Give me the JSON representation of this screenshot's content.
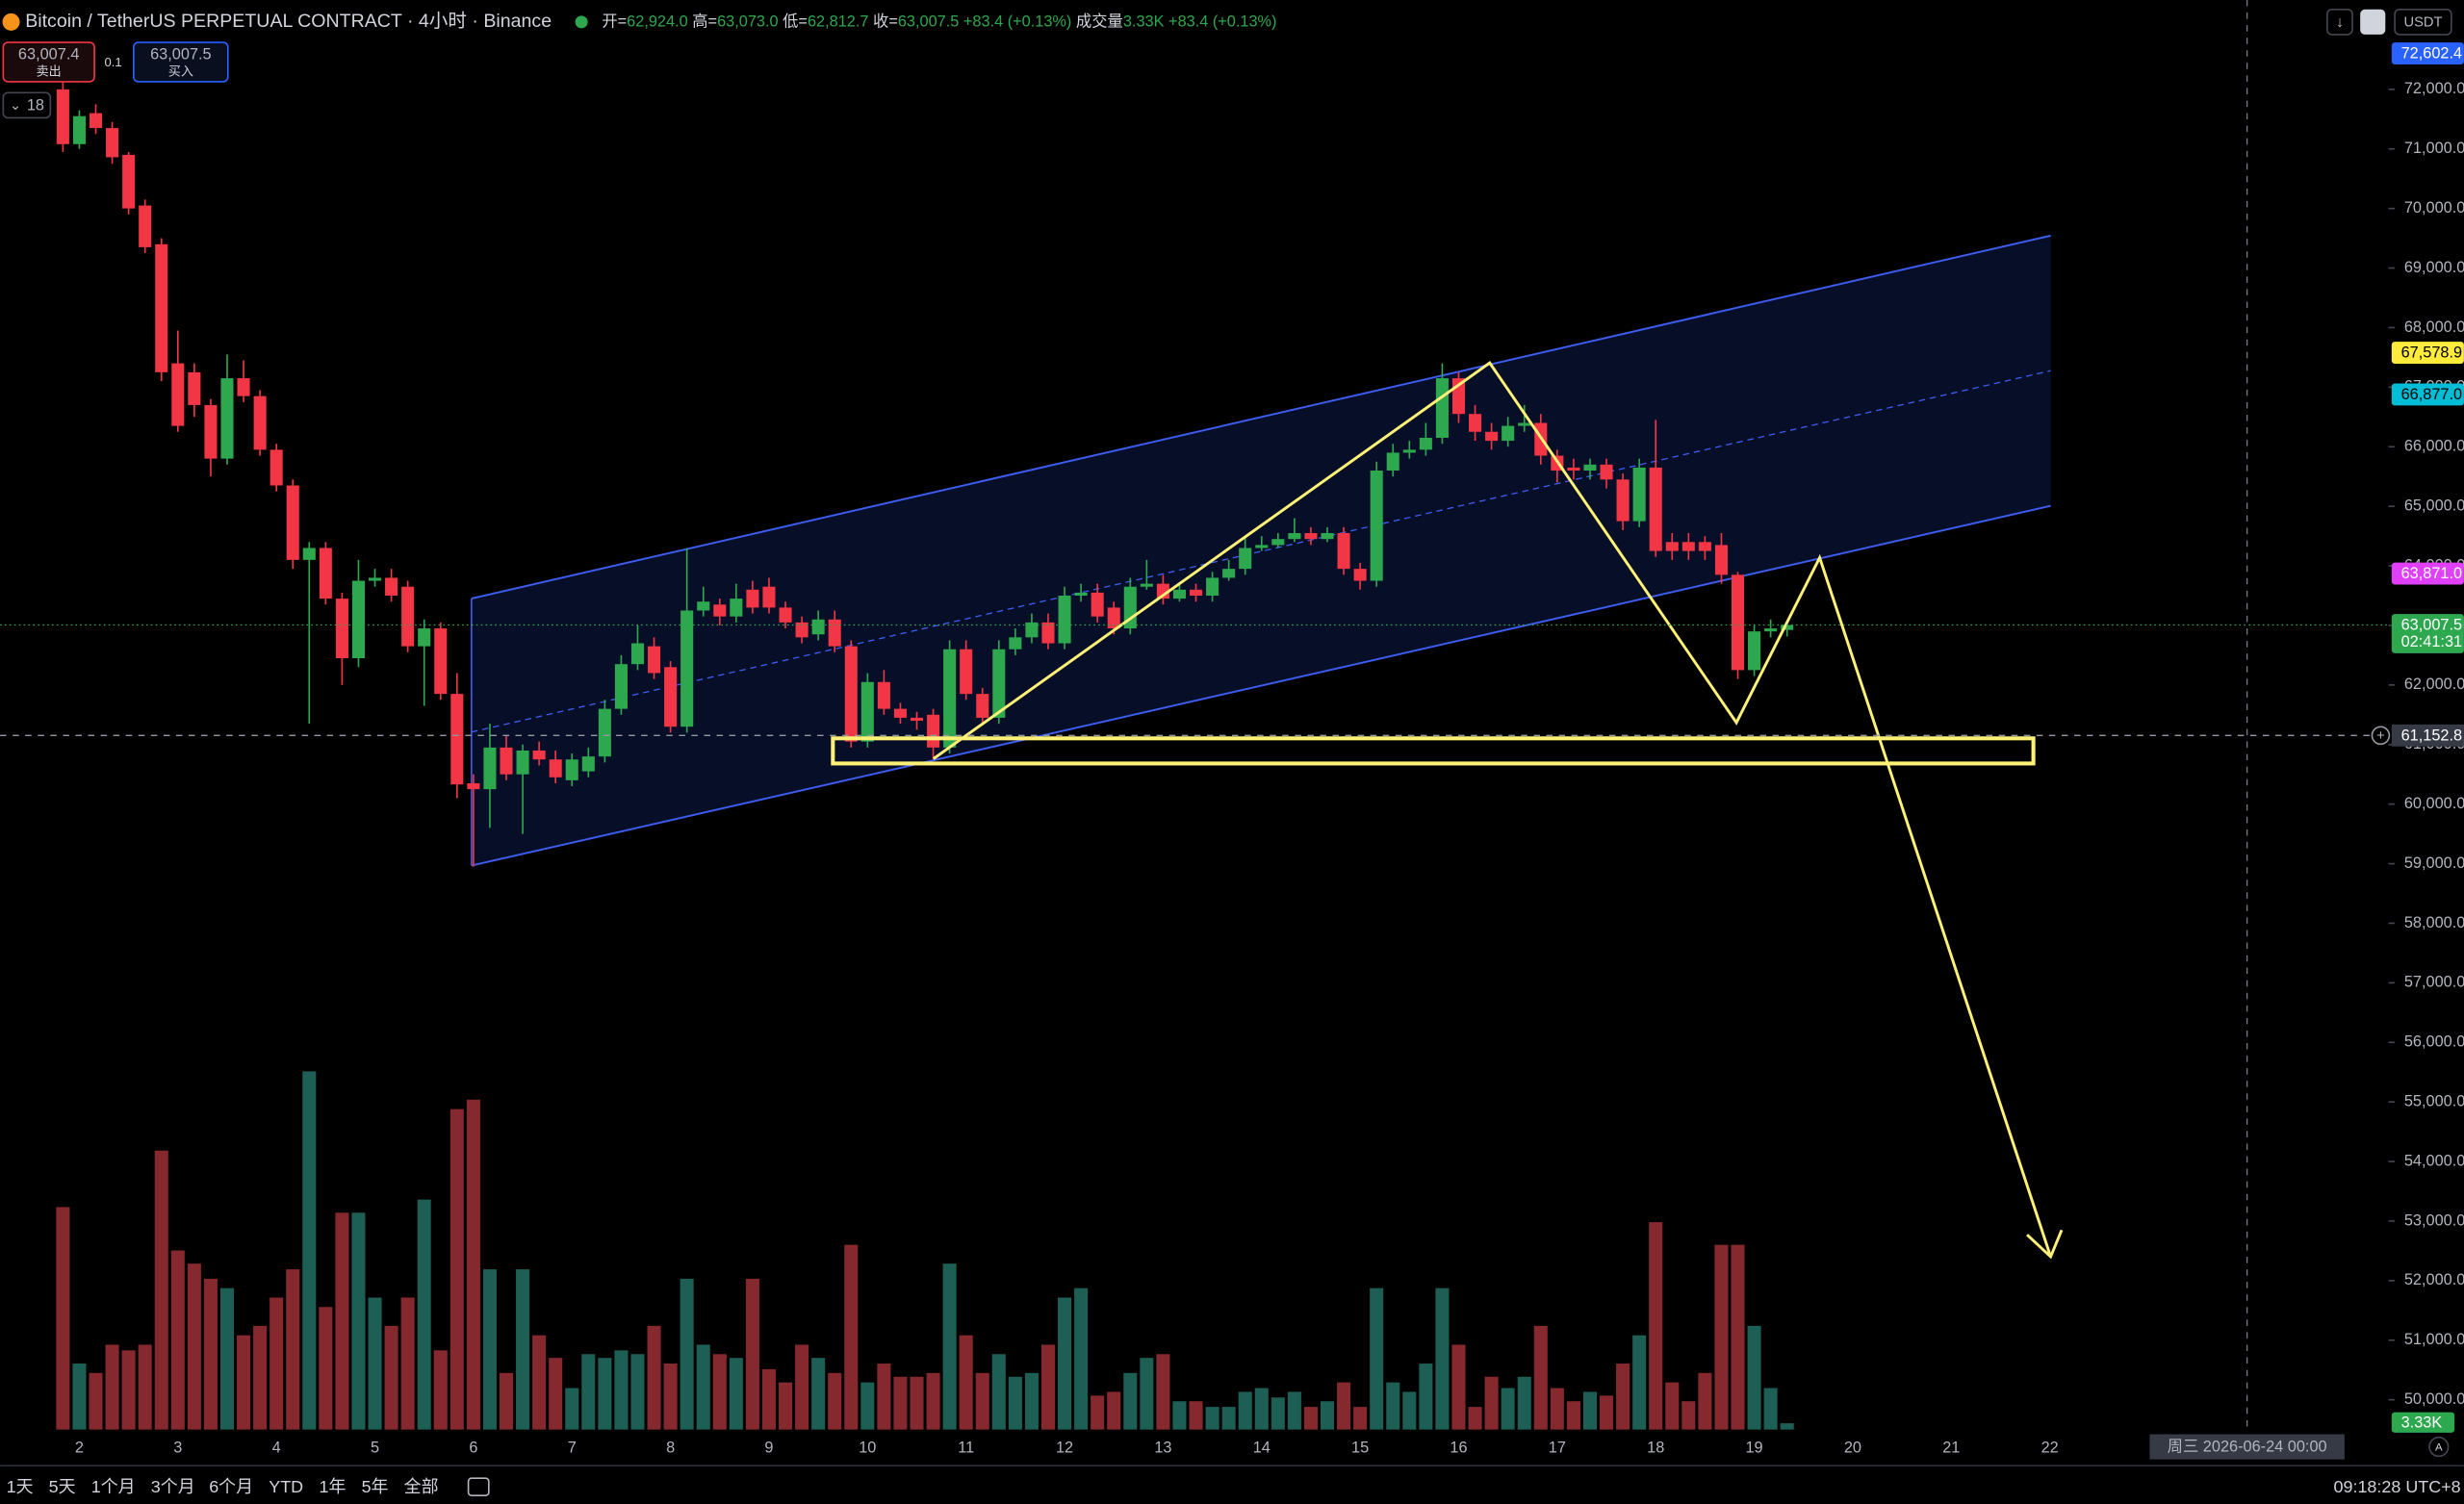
{
  "header": {
    "symbol": "Bitcoin / TetherUS PERPETUAL CONTRACT · 4小时 · Binance",
    "ohlc": [
      {
        "label": "开=",
        "value": "62,924.0"
      },
      {
        "label": "高=",
        "value": "63,073.0"
      },
      {
        "label": "低=",
        "value": "62,812.7"
      },
      {
        "label": "收=",
        "value": "63,007.5"
      }
    ],
    "change": "+83.4 (+0.13%)",
    "volume_label": "成交量",
    "volume": "3.33K",
    "volume_change": "+83.4 (+0.13%)"
  },
  "trade": {
    "sell_price": "63,007.4",
    "sell": "卖出",
    "spread": "0.1",
    "buy_price": "63,007.5",
    "buy": "买入"
  },
  "indicator_count": "18",
  "currency": "USDT",
  "toolbar": {
    "ranges": [
      "1天",
      "5天",
      "1个月",
      "3个月",
      "6个月",
      "YTD",
      "1年",
      "5年",
      "全部"
    ],
    "clock": "09:18:28 UTC+8"
  },
  "crosshair_time": "周三 2026-06-24  00:00",
  "chart_data": {
    "type": "candlestick",
    "up_color": "#2ea84f",
    "down_color": "#f23645",
    "volume_up_color": "#1d5e55",
    "volume_down_color": "#86292e",
    "grid": false,
    "categories": [
      null,
      "2",
      null,
      null,
      null,
      null,
      null,
      "3",
      null,
      null,
      null,
      null,
      null,
      "4",
      null,
      null,
      null,
      null,
      null,
      "5",
      null,
      null,
      null,
      null,
      null,
      "6",
      null,
      null,
      null,
      null,
      null,
      "7",
      null,
      null,
      null,
      null,
      null,
      "8",
      null,
      null,
      null,
      null,
      null,
      "9",
      null,
      null,
      null,
      null,
      null,
      "10",
      null,
      null,
      null,
      null,
      null,
      "11",
      null,
      null,
      null,
      null,
      null,
      "12",
      null,
      null,
      null,
      null,
      null,
      "13",
      null,
      null,
      null,
      null,
      null,
      "14",
      null,
      null,
      null,
      null,
      null,
      "15",
      null,
      null,
      null,
      null,
      null,
      "16",
      null,
      null,
      null,
      null,
      null,
      "17",
      null,
      null,
      null,
      null,
      null,
      "18",
      null,
      null,
      null,
      null,
      null,
      "19",
      null,
      null,
      null,
      null,
      null,
      "20",
      null,
      null,
      null,
      null,
      null,
      "21",
      null,
      null,
      null,
      null,
      null,
      "22"
    ],
    "open": [
      72000,
      71080,
      71600,
      71350,
      70900,
      70050,
      69400,
      67400,
      67250,
      66700,
      65800,
      67150,
      66850,
      65950,
      65350,
      64100,
      64300,
      63450,
      62450,
      63750,
      63800,
      63650,
      62650,
      62950,
      61850,
      60350,
      60250,
      60950,
      60500,
      60900,
      60750,
      60400,
      60550,
      60800,
      61600,
      62350,
      62650,
      62300,
      61300,
      63250,
      63350,
      63150,
      63600,
      63650,
      63300,
      63050,
      62850,
      63100,
      62650,
      61050,
      62050,
      61600,
      61450,
      61500,
      60950,
      62600,
      61850,
      61450,
      62600,
      62800,
      63050,
      62700,
      63500,
      63550,
      63300,
      62950,
      63650,
      63700,
      63450,
      63600,
      63500,
      63800,
      63950,
      64300,
      64350,
      64450,
      64550,
      64450,
      64550,
      63950,
      63750,
      65600,
      65900,
      65950,
      66150,
      67150,
      66550,
      66250,
      66100,
      66350,
      66400,
      65850,
      65650,
      65600,
      65700,
      65450,
      64750,
      65650,
      64400,
      64400,
      64400,
      64350,
      63850,
      62250,
      62900,
      62924,
      null,
      null,
      null,
      null,
      null,
      null,
      null,
      null,
      null,
      null,
      null,
      null,
      null,
      null,
      null,
      null
    ],
    "high": [
      72180,
      71650,
      71750,
      71450,
      70950,
      70150,
      69500,
      67950,
      67400,
      66800,
      67550,
      67450,
      66950,
      66050,
      65450,
      64400,
      64400,
      63550,
      64100,
      63950,
      63950,
      63750,
      63100,
      63050,
      62200,
      60500,
      61350,
      61150,
      61000,
      61050,
      60900,
      60850,
      60950,
      61750,
      62500,
      63000,
      62800,
      62400,
      64300,
      63650,
      63450,
      63700,
      63750,
      63800,
      63400,
      63150,
      63250,
      63250,
      62750,
      62200,
      62250,
      61700,
      61550,
      61600,
      62750,
      62750,
      61950,
      62750,
      62950,
      63200,
      63200,
      63650,
      63700,
      63700,
      63400,
      63800,
      64100,
      63850,
      63700,
      63700,
      63900,
      64100,
      64500,
      64500,
      64550,
      64800,
      64650,
      64650,
      64650,
      64050,
      65750,
      66050,
      66100,
      66400,
      67400,
      67250,
      66700,
      66400,
      66500,
      66700,
      66550,
      65950,
      65800,
      65800,
      65800,
      65550,
      65800,
      66450,
      64550,
      64550,
      64500,
      64550,
      63900,
      63000,
      63100,
      63073,
      null,
      null,
      null,
      null,
      null,
      null,
      null,
      null,
      null,
      null,
      null,
      null,
      null,
      null,
      null,
      null
    ],
    "low": [
      70950,
      71000,
      71250,
      70750,
      69900,
      69250,
      67100,
      66250,
      66500,
      65500,
      65700,
      66750,
      65850,
      65250,
      63950,
      61350,
      63350,
      62000,
      62300,
      63650,
      63400,
      62550,
      61650,
      61750,
      60100,
      58950,
      59600,
      60400,
      59500,
      60650,
      60350,
      60300,
      60450,
      60700,
      61500,
      62250,
      62100,
      61200,
      61200,
      63150,
      63000,
      63050,
      63200,
      63200,
      62950,
      62700,
      62750,
      62550,
      60950,
      60950,
      61500,
      61350,
      61250,
      60750,
      60850,
      61750,
      61350,
      61350,
      62500,
      62700,
      62600,
      62600,
      63400,
      63050,
      62850,
      62850,
      63600,
      63350,
      63400,
      63400,
      63400,
      63750,
      63850,
      64250,
      64300,
      64400,
      64350,
      64400,
      63850,
      63600,
      63650,
      65500,
      65800,
      65850,
      66050,
      66400,
      66100,
      65950,
      66000,
      66250,
      65700,
      65400,
      65450,
      65450,
      65300,
      64600,
      64650,
      64150,
      64100,
      64100,
      64100,
      63700,
      62100,
      62150,
      62800,
      62812.7,
      null,
      null,
      null,
      null,
      null,
      null,
      null,
      null,
      null,
      null,
      null,
      null,
      null,
      null,
      null,
      null
    ],
    "close": [
      71080,
      71550,
      71350,
      70860,
      70000,
      69350,
      67250,
      66350,
      66700,
      65800,
      67150,
      66850,
      65950,
      65350,
      64100,
      64300,
      63450,
      62450,
      63750,
      63800,
      63500,
      62650,
      62950,
      61850,
      60330,
      60250,
      60950,
      60500,
      60900,
      60750,
      60450,
      60750,
      60800,
      61600,
      62350,
      62700,
      62200,
      61300,
      63250,
      63400,
      63150,
      63450,
      63300,
      63300,
      63050,
      62800,
      63100,
      62650,
      61050,
      62050,
      61600,
      61450,
      61400,
      60950,
      62600,
      61850,
      61450,
      62600,
      62800,
      63050,
      62700,
      63500,
      63550,
      63150,
      62950,
      63650,
      63700,
      63450,
      63600,
      63500,
      63800,
      63950,
      64300,
      64350,
      64450,
      64550,
      64450,
      64550,
      63950,
      63750,
      65600,
      65900,
      65950,
      66150,
      67150,
      66550,
      66250,
      66100,
      66350,
      66400,
      65850,
      65600,
      65600,
      65700,
      65450,
      64750,
      65650,
      64250,
      64250,
      64250,
      64250,
      63850,
      62250,
      62900,
      62950,
      63007.5,
      null,
      null,
      null,
      null,
      null,
      null,
      null,
      null,
      null,
      null,
      null,
      null,
      null,
      null,
      null,
      null
    ],
    "volume": [
      118000,
      35000,
      30000,
      45000,
      42000,
      45000,
      148000,
      95000,
      88000,
      80000,
      75000,
      50000,
      55000,
      70000,
      85000,
      190000,
      65000,
      115000,
      115000,
      70000,
      55000,
      70000,
      122000,
      42000,
      170000,
      175000,
      85000,
      30000,
      85000,
      50000,
      38000,
      22000,
      40000,
      38000,
      42000,
      40000,
      55000,
      35000,
      80000,
      45000,
      40000,
      38000,
      80000,
      32000,
      25000,
      45000,
      38000,
      30000,
      98000,
      25000,
      35000,
      28000,
      28000,
      30000,
      88000,
      50000,
      30000,
      40000,
      28000,
      30000,
      45000,
      70000,
      75000,
      18000,
      20000,
      30000,
      38000,
      40000,
      15000,
      15000,
      12000,
      12000,
      20000,
      22000,
      17000,
      20000,
      12000,
      15000,
      25000,
      12000,
      75000,
      25000,
      20000,
      35000,
      75000,
      45000,
      12000,
      28000,
      22000,
      28000,
      55000,
      22000,
      15000,
      20000,
      18000,
      35000,
      50000,
      110000,
      25000,
      15000,
      30000,
      98000,
      98000,
      55000,
      22000,
      3330,
      null,
      null,
      null,
      null,
      null,
      null,
      null,
      null,
      null,
      null,
      null,
      null,
      null,
      null,
      null,
      null
    ],
    "ylim": [
      49500,
      73500
    ],
    "volume_ylim": [
      0,
      200000
    ],
    "yticks": [
      {
        "value": 50000,
        "label": "50,000.0"
      },
      {
        "value": 51000,
        "label": "51,000.0"
      },
      {
        "value": 52000,
        "label": "52,000.0"
      },
      {
        "value": 53000,
        "label": "53,000.0"
      },
      {
        "value": 54000,
        "label": "54,000.0"
      },
      {
        "value": 55000,
        "label": "55,000.0"
      },
      {
        "value": 56000,
        "label": "56,000.0"
      },
      {
        "value": 57000,
        "label": "57,000.0"
      },
      {
        "value": 58000,
        "label": "58,000.0"
      },
      {
        "value": 59000,
        "label": "59,000.0"
      },
      {
        "value": 60000,
        "label": "60,000.0"
      },
      {
        "value": 61000,
        "label": "61,000.0"
      },
      {
        "value": 62000,
        "label": "62,000.0"
      },
      {
        "value": 63000,
        "label": "63,000.0"
      },
      {
        "value": 64000,
        "label": "64,000.0"
      },
      {
        "value": 65000,
        "label": "65,000.0"
      },
      {
        "value": 66000,
        "label": "66,000.0"
      },
      {
        "value": 67000,
        "label": "67,000.0"
      },
      {
        "value": 68000,
        "label": "68,000.0"
      },
      {
        "value": 69000,
        "label": "69,000.0"
      },
      {
        "value": 70000,
        "label": "70,000.0"
      },
      {
        "value": 71000,
        "label": "71,000.0"
      },
      {
        "value": 72000,
        "label": "72,000.0"
      }
    ],
    "price_labels": [
      {
        "value": 72602.4,
        "label": "72,602.4",
        "color": "#2962ff",
        "text_color": "#ffffff"
      },
      {
        "value": 67578.9,
        "label": "67,578.9",
        "color": "#ffeb3b",
        "text_color": "#000000"
      },
      {
        "value": 66877.0,
        "label": "66,877.0",
        "color": "#00bcd4",
        "text_color": "#000000"
      },
      {
        "value": 63871.0,
        "label": "63,871.0",
        "color": "#e040fb",
        "text_color": "#ffffff"
      }
    ],
    "last_price": {
      "value": 63007.5,
      "label": "63,007.5",
      "countdown": "02:41:31",
      "color": "#2ea84f"
    },
    "crosshair_price": {
      "value": 61152.8,
      "label": "61,152.8"
    },
    "volume_label": {
      "value": 3330,
      "label": "3.33K"
    }
  }
}
